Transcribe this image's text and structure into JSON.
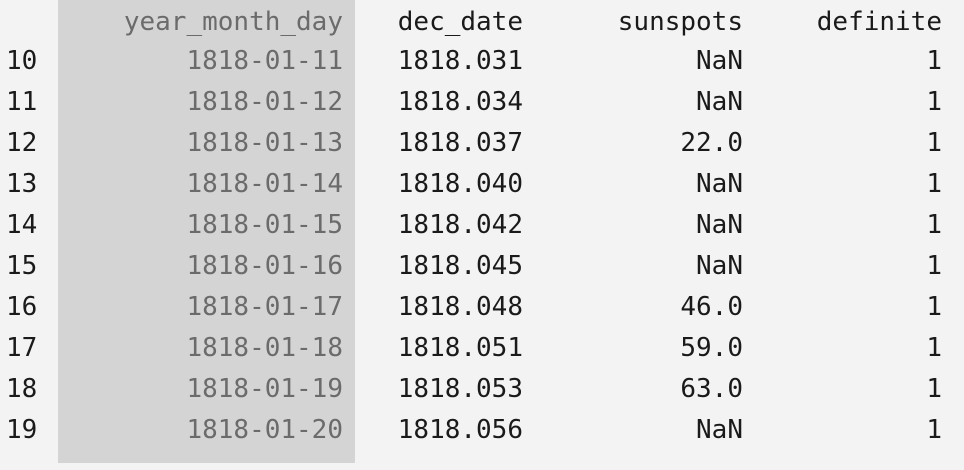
{
  "columns": {
    "index": "",
    "year_month_day": "year_month_day",
    "dec_date": "dec_date",
    "sunspots": "sunspots",
    "definite": "definite"
  },
  "rows": [
    {
      "index": "10",
      "year_month_day": "1818-01-11",
      "dec_date": "1818.031",
      "sunspots": "NaN",
      "definite": "1"
    },
    {
      "index": "11",
      "year_month_day": "1818-01-12",
      "dec_date": "1818.034",
      "sunspots": "NaN",
      "definite": "1"
    },
    {
      "index": "12",
      "year_month_day": "1818-01-13",
      "dec_date": "1818.037",
      "sunspots": "22.0",
      "definite": "1"
    },
    {
      "index": "13",
      "year_month_day": "1818-01-14",
      "dec_date": "1818.040",
      "sunspots": "NaN",
      "definite": "1"
    },
    {
      "index": "14",
      "year_month_day": "1818-01-15",
      "dec_date": "1818.042",
      "sunspots": "NaN",
      "definite": "1"
    },
    {
      "index": "15",
      "year_month_day": "1818-01-16",
      "dec_date": "1818.045",
      "sunspots": "NaN",
      "definite": "1"
    },
    {
      "index": "16",
      "year_month_day": "1818-01-17",
      "dec_date": "1818.048",
      "sunspots": "46.0",
      "definite": "1"
    },
    {
      "index": "17",
      "year_month_day": "1818-01-18",
      "dec_date": "1818.051",
      "sunspots": "59.0",
      "definite": "1"
    },
    {
      "index": "18",
      "year_month_day": "1818-01-19",
      "dec_date": "1818.053",
      "sunspots": "63.0",
      "definite": "1"
    },
    {
      "index": "19",
      "year_month_day": "1818-01-20",
      "dec_date": "1818.056",
      "sunspots": "NaN",
      "definite": "1"
    }
  ],
  "colors": {
    "background": "#f3f3f3",
    "highlight_column": "#d4d4d4",
    "text": "#1a1a1a",
    "highlight_text": "#6b6b6b"
  }
}
